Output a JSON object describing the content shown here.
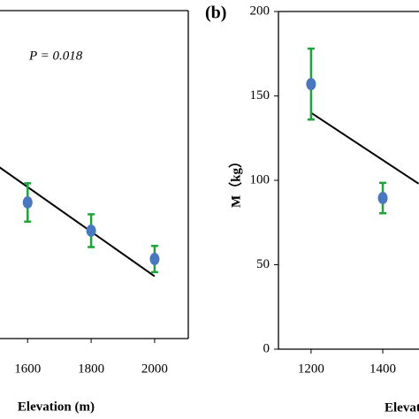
{
  "chart_data": [
    {
      "type": "scatter",
      "annotation": "P = 0.018",
      "x_label": "Elevation (m)",
      "x": [
        1600,
        1800,
        2000
      ],
      "series": [
        {
          "values": [
            83,
            65.8,
            48.5
          ],
          "errors": [
            11.7,
            10,
            8
          ],
          "color": "#4a78be",
          "error_color": "#1fa33a"
        }
      ],
      "fit": {
        "x": [
          1500,
          2000
        ],
        "y": [
          106,
          38
        ],
        "color": "#000000"
      },
      "xlim": [
        1513,
        2106
      ],
      "ylim": [
        0,
        200
      ],
      "xticks": [
        1600,
        1800,
        2000
      ]
    },
    {
      "type": "scatter",
      "panel_label": "(b)",
      "x_label": "Elevation (m)",
      "y_label": "M（kg）",
      "x": [
        1200,
        1400
      ],
      "series": [
        {
          "values": [
            157,
            89.5
          ],
          "errors": [
            21,
            9
          ],
          "color": "#4a78be",
          "error_color": "#1fa33a"
        }
      ],
      "fit": {
        "x": [
          1200,
          1500
        ],
        "y": [
          140,
          98
        ],
        "color": "#000000"
      },
      "xlim": [
        1109,
        1501
      ],
      "ylim": [
        0,
        200
      ],
      "xticks": [
        1200,
        1400
      ],
      "yticks": [
        0,
        50,
        100,
        150,
        200
      ]
    }
  ]
}
